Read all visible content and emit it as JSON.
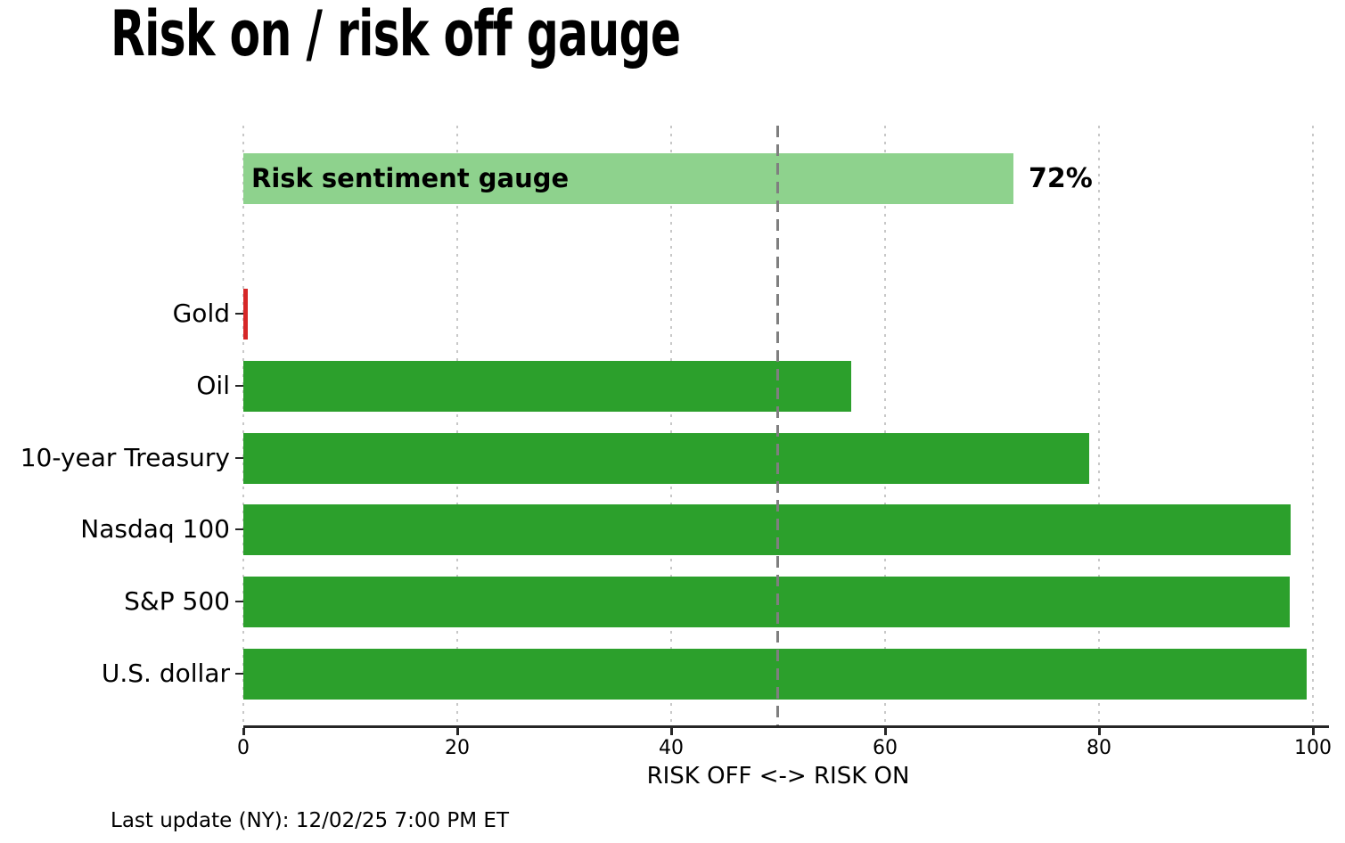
{
  "title": "Risk on / risk off gauge",
  "footer": "Last update (NY): 12/02/25 7:00 PM ET",
  "colors": {
    "risk_on_green": "#2ca02c",
    "gauge_light_green": "#8ed28d",
    "risk_off_red": "#d62728",
    "threshold_gray": "#7f7f7f",
    "grid_gray": "#c8c8c8",
    "axis_color": "#262626",
    "background": "#ffffff"
  },
  "chart_data": {
    "type": "bar",
    "orientation": "horizontal",
    "title": "Risk on / risk off gauge",
    "xlabel": "RISK OFF <-> RISK ON",
    "ylabel": "",
    "xlim": [
      0,
      100
    ],
    "x_ticks": [
      0,
      20,
      40,
      60,
      80,
      100
    ],
    "x_tick_labels": [
      "0",
      "20",
      "40",
      "60",
      "80",
      "100"
    ],
    "grid": "vertical dotted",
    "threshold_line_x": 50,
    "gauge": {
      "label": "Risk sentiment gauge",
      "value": 72,
      "value_label": "72%",
      "color": "#8ed28d"
    },
    "categories": [
      "Gold",
      "Oil",
      "10-year Treasury",
      "Nasdaq 100",
      "S&P 500",
      "U.S. dollar"
    ],
    "values": [
      0.4,
      56.8,
      79.1,
      97.9,
      97.8,
      99.4
    ],
    "bar_colors": [
      "#d62728",
      "#2ca02c",
      "#2ca02c",
      "#2ca02c",
      "#2ca02c",
      "#2ca02c"
    ],
    "legend": "none"
  }
}
